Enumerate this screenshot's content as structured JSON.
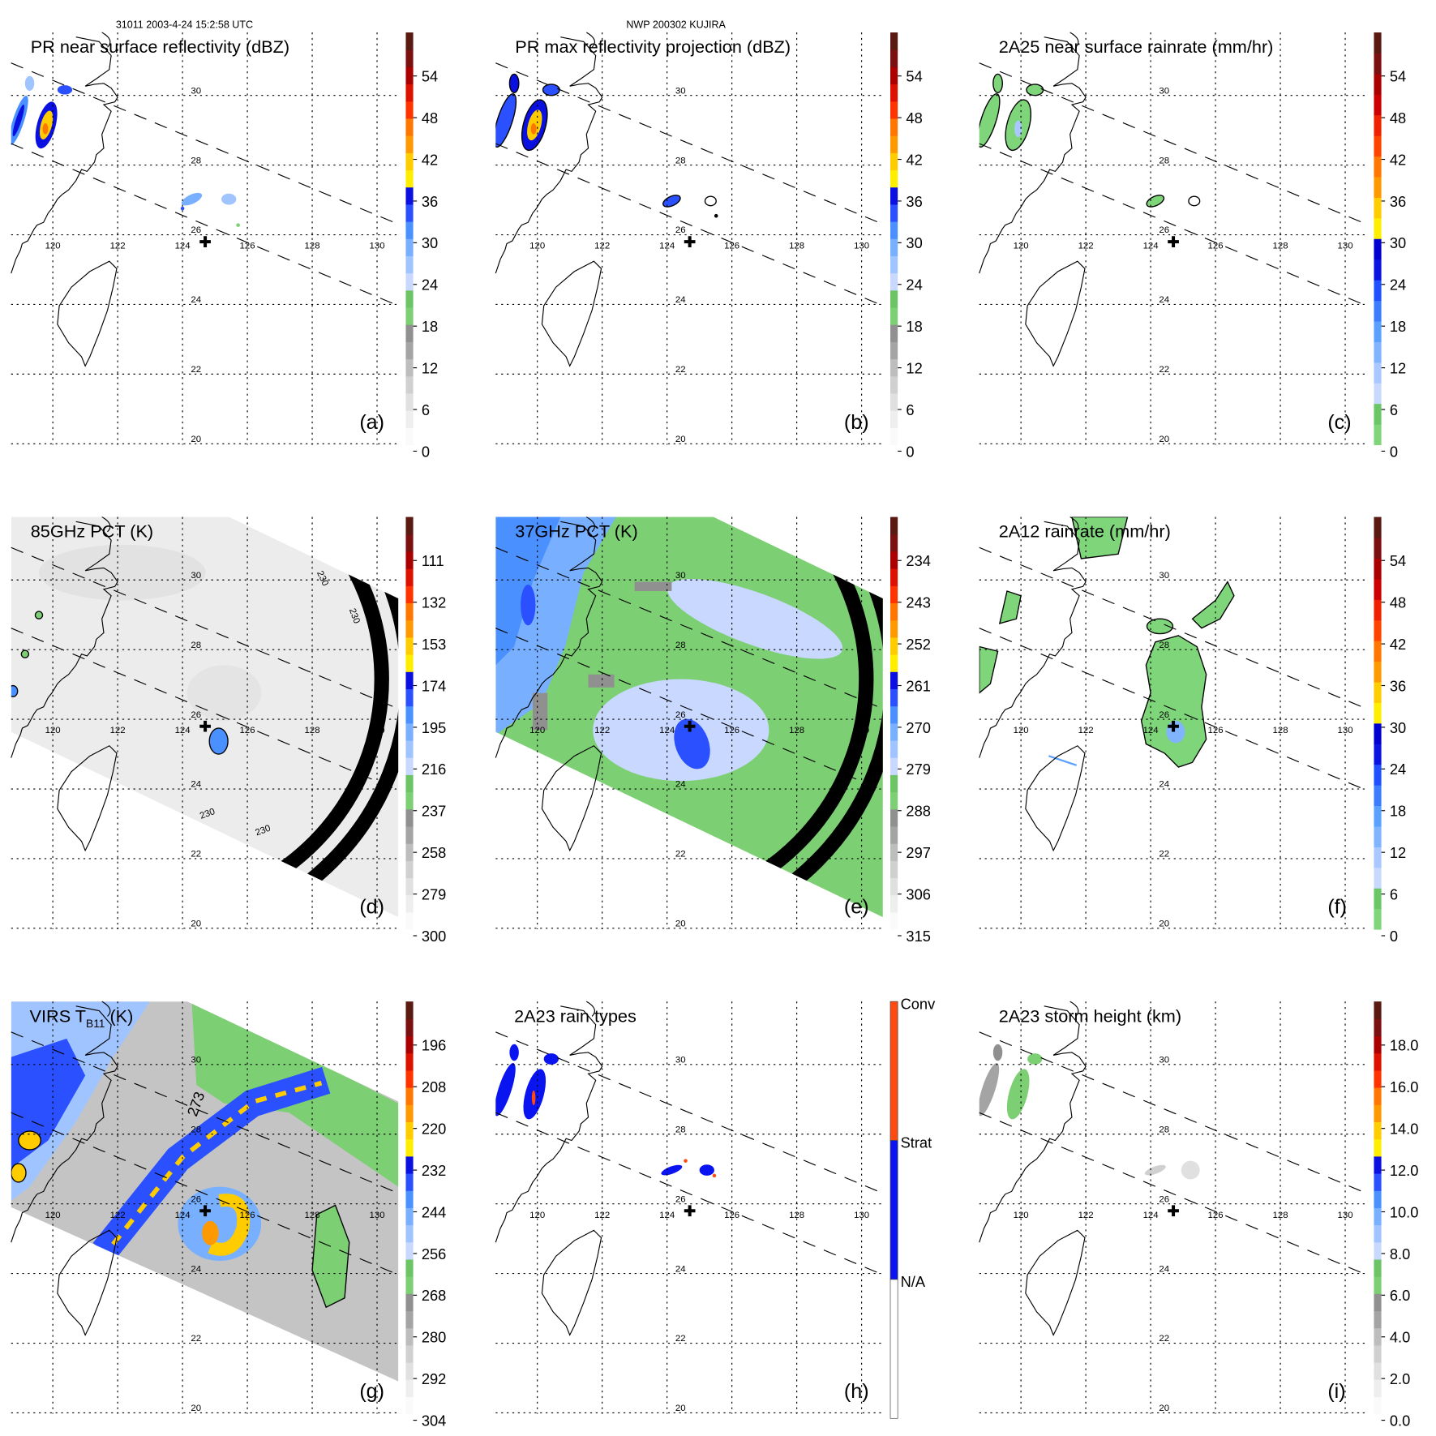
{
  "header": {
    "orbit_time": "31011 2003-4-24 15:2:58 UTC",
    "storm_name": "NWP 200302 KUJIRA"
  },
  "map": {
    "lon_labels": [
      "120",
      "122",
      "124",
      "126",
      "128",
      "130"
    ],
    "lat_labels": [
      "30",
      "28",
      "26",
      "24",
      "22",
      "20"
    ]
  },
  "palettes": {
    "A": [
      "#fafafa",
      "#eeeeee",
      "#e0e0e0",
      "#d0d0d0",
      "#bdbdbd",
      "#a4a4a4",
      "#909090",
      "#7ccf72",
      "#6cc464",
      "#c8d8ff",
      "#a0c4ff",
      "#78b0ff",
      "#4a90ff",
      "#2a50ff",
      "#0a10e0",
      "#ffee00",
      "#ffcc00",
      "#ff9900",
      "#ff7700",
      "#ff3300",
      "#dd1100",
      "#aa0000",
      "#7a1010",
      "#5a1a12"
    ],
    "C": [
      "#7fd67a",
      "#6bc765",
      "#c8d8ff",
      "#a8c8ff",
      "#80b4ff",
      "#5aa0ff",
      "#3c7cff",
      "#2050ff",
      "#0a14e0",
      "#0000d0",
      "#ffee00",
      "#ffcc00",
      "#ff9900",
      "#ff7700",
      "#ff4400",
      "#ee2200",
      "#cc0000",
      "#aa0000",
      "#7a1010",
      "#5a1a12"
    ],
    "H": [
      "#ffffff",
      "#0a14f0",
      "#ff4a10"
    ]
  },
  "panels": [
    {
      "id": "a",
      "title": "PR near surface reflectivity (dBZ)",
      "letter": "(a)",
      "palette": "A",
      "ticks": [
        "54",
        "48",
        "42",
        "36",
        "30",
        "24",
        "18",
        "12",
        "6",
        "0"
      ]
    },
    {
      "id": "b",
      "title": "PR max reflectivity projection (dBZ)",
      "letter": "(b)",
      "palette": "A",
      "ticks": [
        "54",
        "48",
        "42",
        "36",
        "30",
        "24",
        "18",
        "12",
        "6",
        "0"
      ]
    },
    {
      "id": "c",
      "title": "2A25 near surface rainrate (mm/hr)",
      "letter": "(c)",
      "palette": "C",
      "ticks": [
        "54",
        "48",
        "42",
        "36",
        "30",
        "24",
        "18",
        "12",
        "6",
        "0"
      ]
    },
    {
      "id": "d",
      "title": "85GHz PCT (K)",
      "letter": "(d)",
      "palette": "A",
      "ticks": [
        "111",
        "132",
        "153",
        "174",
        "195",
        "216",
        "237",
        "258",
        "279",
        "300"
      ],
      "contour_label": "230"
    },
    {
      "id": "e",
      "title": "37GHz PCT (K)",
      "letter": "(e)",
      "palette": "A",
      "ticks": [
        "234",
        "243",
        "252",
        "261",
        "270",
        "279",
        "288",
        "297",
        "306",
        "315"
      ]
    },
    {
      "id": "f",
      "title": "2A12 rainrate (mm/hr)",
      "letter": "(f)",
      "palette": "C",
      "ticks": [
        "54",
        "48",
        "42",
        "36",
        "30",
        "24",
        "18",
        "12",
        "6",
        "0"
      ]
    },
    {
      "id": "g",
      "title": "VIRS T",
      "title_sub": "B11",
      "title_suffix": " (K)",
      "letter": "(g)",
      "palette": "A",
      "ticks": [
        "196",
        "208",
        "220",
        "232",
        "244",
        "256",
        "268",
        "280",
        "292",
        "304"
      ],
      "contour_label": "273"
    },
    {
      "id": "h",
      "title": "2A23 rain types",
      "letter": "(h)",
      "palette": "H",
      "ticks": [
        "Conv",
        "Strat",
        "N/A"
      ]
    },
    {
      "id": "i",
      "title": "2A23 storm height (km)",
      "letter": "(i)",
      "palette": "A",
      "ticks": [
        "18.0",
        "16.0",
        "14.0",
        "12.0",
        "10.0",
        "8.0",
        "6.0",
        "4.0",
        "2.0",
        "0.0"
      ]
    }
  ]
}
